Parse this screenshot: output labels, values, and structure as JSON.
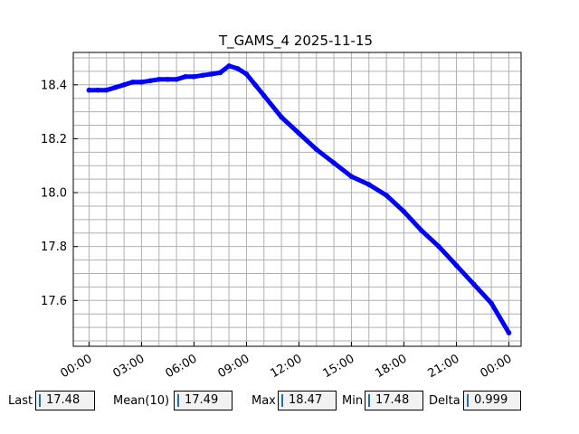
{
  "chart_data": {
    "type": "line",
    "title": "T_GAMS_4 2025-11-15",
    "xlabel": "",
    "ylabel": "",
    "x_tick_labels": [
      "00:00",
      "03:00",
      "06:00",
      "09:00",
      "12:00",
      "15:00",
      "18:00",
      "21:00",
      "00:00"
    ],
    "x_ticks_hours": [
      0,
      3,
      6,
      9,
      12,
      15,
      18,
      21,
      24
    ],
    "xlim_hours": [
      -0.9,
      24.7
    ],
    "ylim": [
      17.43,
      18.52
    ],
    "y_ticks": [
      17.6,
      17.8,
      18.0,
      18.2,
      18.4
    ],
    "y_tick_labels": [
      "17.6",
      "17.8",
      "18.0",
      "18.2",
      "18.4"
    ],
    "grid": true,
    "series": [
      {
        "color": "#0000ff",
        "x_hours": [
          0,
          0.5,
          1,
          1.5,
          2,
          2.5,
          3,
          3.5,
          4,
          4.5,
          5,
          5.5,
          6,
          6.5,
          7,
          7.5,
          8,
          8.5,
          9,
          9.5,
          10,
          11,
          12,
          13,
          14,
          15,
          16,
          17,
          18,
          19,
          20,
          21,
          22,
          23,
          24
        ],
        "values": [
          18.38,
          18.38,
          18.38,
          18.39,
          18.4,
          18.41,
          18.41,
          18.415,
          18.42,
          18.42,
          18.42,
          18.43,
          18.43,
          18.435,
          18.44,
          18.445,
          18.47,
          18.46,
          18.44,
          18.4,
          18.36,
          18.28,
          18.22,
          18.16,
          18.11,
          18.06,
          18.03,
          17.99,
          17.93,
          17.86,
          17.8,
          17.73,
          17.66,
          17.59,
          17.48
        ]
      }
    ]
  },
  "stats": {
    "last_label": "Last",
    "last_value": "17.48",
    "mean_label": "Mean(10)",
    "mean_value": "17.49",
    "max_label": "Max",
    "max_value": "18.47",
    "min_label": "Min",
    "min_value": "17.48",
    "delta_label": "Delta",
    "delta_value": "0.999"
  },
  "colors": {
    "line": "#0000ff",
    "grid": "#b0b0b0",
    "field_bg": "#f2f2f2",
    "cursor": "#1f6fb4"
  }
}
